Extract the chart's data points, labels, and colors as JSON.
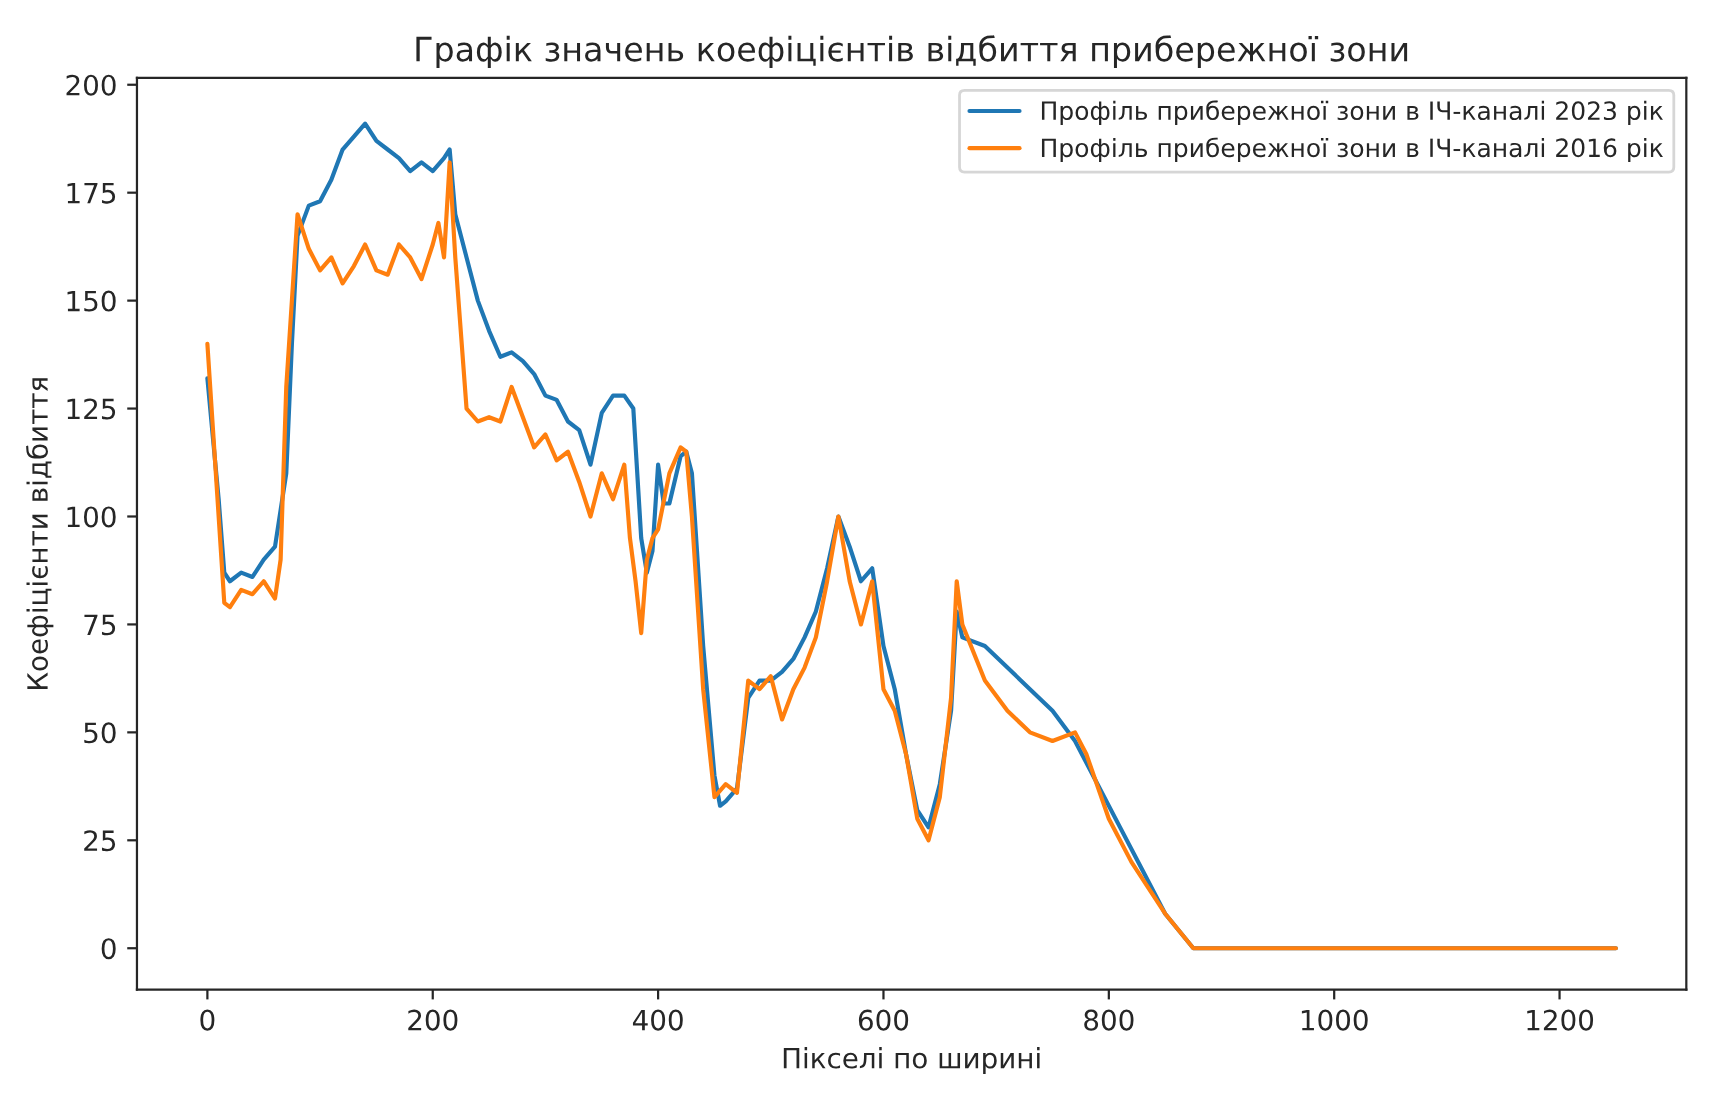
{
  "chart_data": {
    "type": "line",
    "title": "Графік значень коефіцієнтів відбиття прибережної зони",
    "xlabel": "Пікселі по ширині",
    "ylabel": "Коефіцієнти відбиття",
    "xlim": [
      -62.5,
      1312.5
    ],
    "ylim": [
      -9.6,
      201.6
    ],
    "xticks": [
      0,
      200,
      400,
      600,
      800,
      1000,
      1200
    ],
    "yticks": [
      0,
      25,
      50,
      75,
      100,
      125,
      150,
      175,
      200
    ],
    "grid": false,
    "legend": "top right",
    "series": [
      {
        "name": "Профіль прибережної зони в ІЧ-каналі 2023 рік",
        "color": "#1f77b4",
        "x": [
          0,
          5,
          10,
          15,
          20,
          30,
          40,
          50,
          60,
          70,
          75,
          80,
          90,
          100,
          110,
          120,
          130,
          140,
          150,
          160,
          170,
          180,
          190,
          200,
          210,
          215,
          220,
          230,
          240,
          250,
          260,
          270,
          280,
          290,
          300,
          310,
          320,
          330,
          340,
          350,
          360,
          370,
          378,
          385,
          390,
          395,
          400,
          405,
          410,
          420,
          425,
          430,
          440,
          450,
          455,
          460,
          470,
          480,
          490,
          500,
          510,
          520,
          530,
          540,
          550,
          560,
          570,
          580,
          590,
          600,
          610,
          620,
          630,
          640,
          650,
          660,
          665,
          670,
          690,
          710,
          730,
          750,
          770,
          790,
          810,
          830,
          850,
          875,
          1250
        ],
        "values": [
          132,
          118,
          104,
          87,
          85,
          87,
          86,
          90,
          93,
          110,
          140,
          165,
          172,
          173,
          178,
          185,
          188,
          191,
          187,
          185,
          183,
          180,
          182,
          180,
          183,
          185,
          170,
          160,
          150,
          143,
          137,
          138,
          136,
          133,
          128,
          127,
          122,
          120,
          112,
          124,
          128,
          128,
          125,
          95,
          87,
          92,
          112,
          103,
          103,
          114,
          115,
          110,
          70,
          40,
          33,
          34,
          37,
          58,
          62,
          62,
          64,
          67,
          72,
          78,
          88,
          100,
          93,
          85,
          88,
          70,
          60,
          45,
          32,
          28,
          38,
          55,
          78,
          72,
          70,
          65,
          60,
          55,
          48,
          38,
          28,
          18,
          8,
          0,
          0
        ]
      },
      {
        "name": "Профіль прибережної зони в ІЧ-каналі 2016 рік",
        "color": "#ff7f0e",
        "x": [
          0,
          5,
          10,
          15,
          20,
          30,
          40,
          50,
          60,
          65,
          70,
          75,
          80,
          90,
          100,
          110,
          120,
          130,
          140,
          150,
          160,
          170,
          180,
          190,
          200,
          205,
          210,
          215,
          220,
          230,
          240,
          250,
          260,
          270,
          280,
          290,
          300,
          310,
          320,
          330,
          340,
          350,
          360,
          370,
          375,
          380,
          385,
          390,
          395,
          400,
          410,
          420,
          425,
          430,
          440,
          450,
          460,
          470,
          480,
          490,
          500,
          510,
          520,
          530,
          540,
          550,
          560,
          570,
          580,
          590,
          600,
          610,
          620,
          630,
          640,
          650,
          660,
          665,
          670,
          690,
          710,
          730,
          750,
          770,
          780,
          800,
          820,
          850,
          875,
          1250
        ],
        "values": [
          140,
          120,
          100,
          80,
          79,
          83,
          82,
          85,
          81,
          90,
          130,
          150,
          170,
          162,
          157,
          160,
          154,
          158,
          163,
          157,
          156,
          163,
          160,
          155,
          163,
          168,
          160,
          182,
          160,
          125,
          122,
          123,
          122,
          130,
          123,
          116,
          119,
          113,
          115,
          108,
          100,
          110,
          104,
          112,
          95,
          85,
          73,
          90,
          95,
          97,
          110,
          116,
          115,
          100,
          60,
          35,
          38,
          36,
          62,
          60,
          63,
          53,
          60,
          65,
          72,
          85,
          100,
          85,
          75,
          85,
          60,
          55,
          45,
          30,
          25,
          35,
          58,
          85,
          75,
          62,
          55,
          50,
          48,
          50,
          45,
          30,
          20,
          8,
          0,
          0
        ]
      }
    ]
  }
}
